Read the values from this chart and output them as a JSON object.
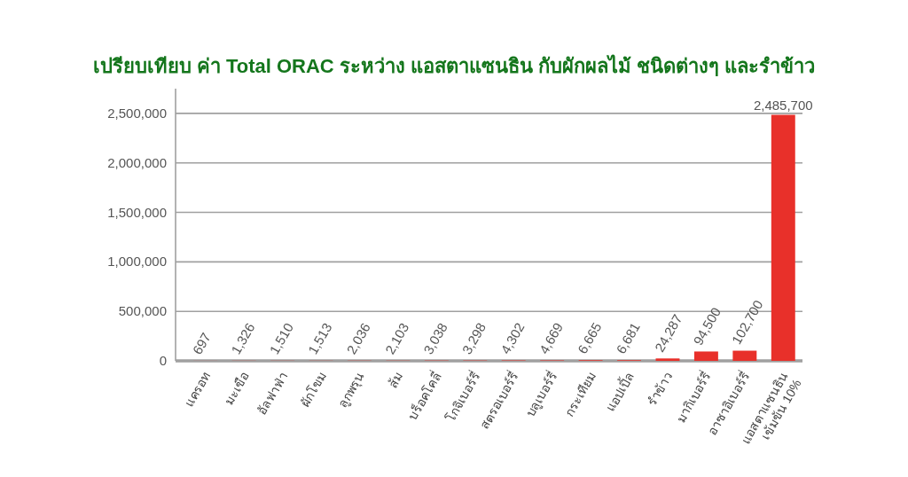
{
  "chart_data": {
    "type": "bar",
    "title": "เปรียบเทียบ ค่า Total ORAC ระหว่าง แอสตาแซนธิน กับผักผลไม้ ชนิดต่างๆ และรำข้าว",
    "categories": [
      "แครอท",
      "มะเขือ",
      "อัลฟาฟ่า",
      "ผักโขม",
      "ลูกพรุน",
      "ส้ม",
      "บร็อคโคลี่",
      "โกจิเบอร์รี่",
      "สตรอเบอร์รี่",
      "บลูเบอร์รี่",
      "กระเทียม",
      "แอปเปิ้ล",
      "รำข้าว",
      "มากิเบอร์รี่",
      "อาซาอิเบอร์รี่",
      "แอสตาแซนธิน\nเข้มข้น 10%"
    ],
    "values": [
      697,
      1326,
      1510,
      1513,
      2036,
      2103,
      3038,
      3298,
      4302,
      4669,
      6665,
      6681,
      24287,
      94500,
      102700,
      2485700
    ],
    "value_labels": [
      "697",
      "1,326",
      "1,510",
      "1,513",
      "2,036",
      "2,103",
      "3,038",
      "3,298",
      "4,302",
      "4,669",
      "6,665",
      "6,681",
      "24,287",
      "94,500",
      "102,700",
      "2,485,700"
    ],
    "color": "#e8302a",
    "ylim": [
      0,
      2750000
    ],
    "yticks": [
      {
        "value": 0,
        "label": "0"
      },
      {
        "value": 500000,
        "label": "500,000"
      },
      {
        "value": 1000000,
        "label": "1,000,000"
      },
      {
        "value": 1500000,
        "label": "1,500,000"
      },
      {
        "value": 2000000,
        "label": "2,000,000"
      },
      {
        "value": 2500000,
        "label": "2,500,000"
      }
    ],
    "grid": "y"
  }
}
